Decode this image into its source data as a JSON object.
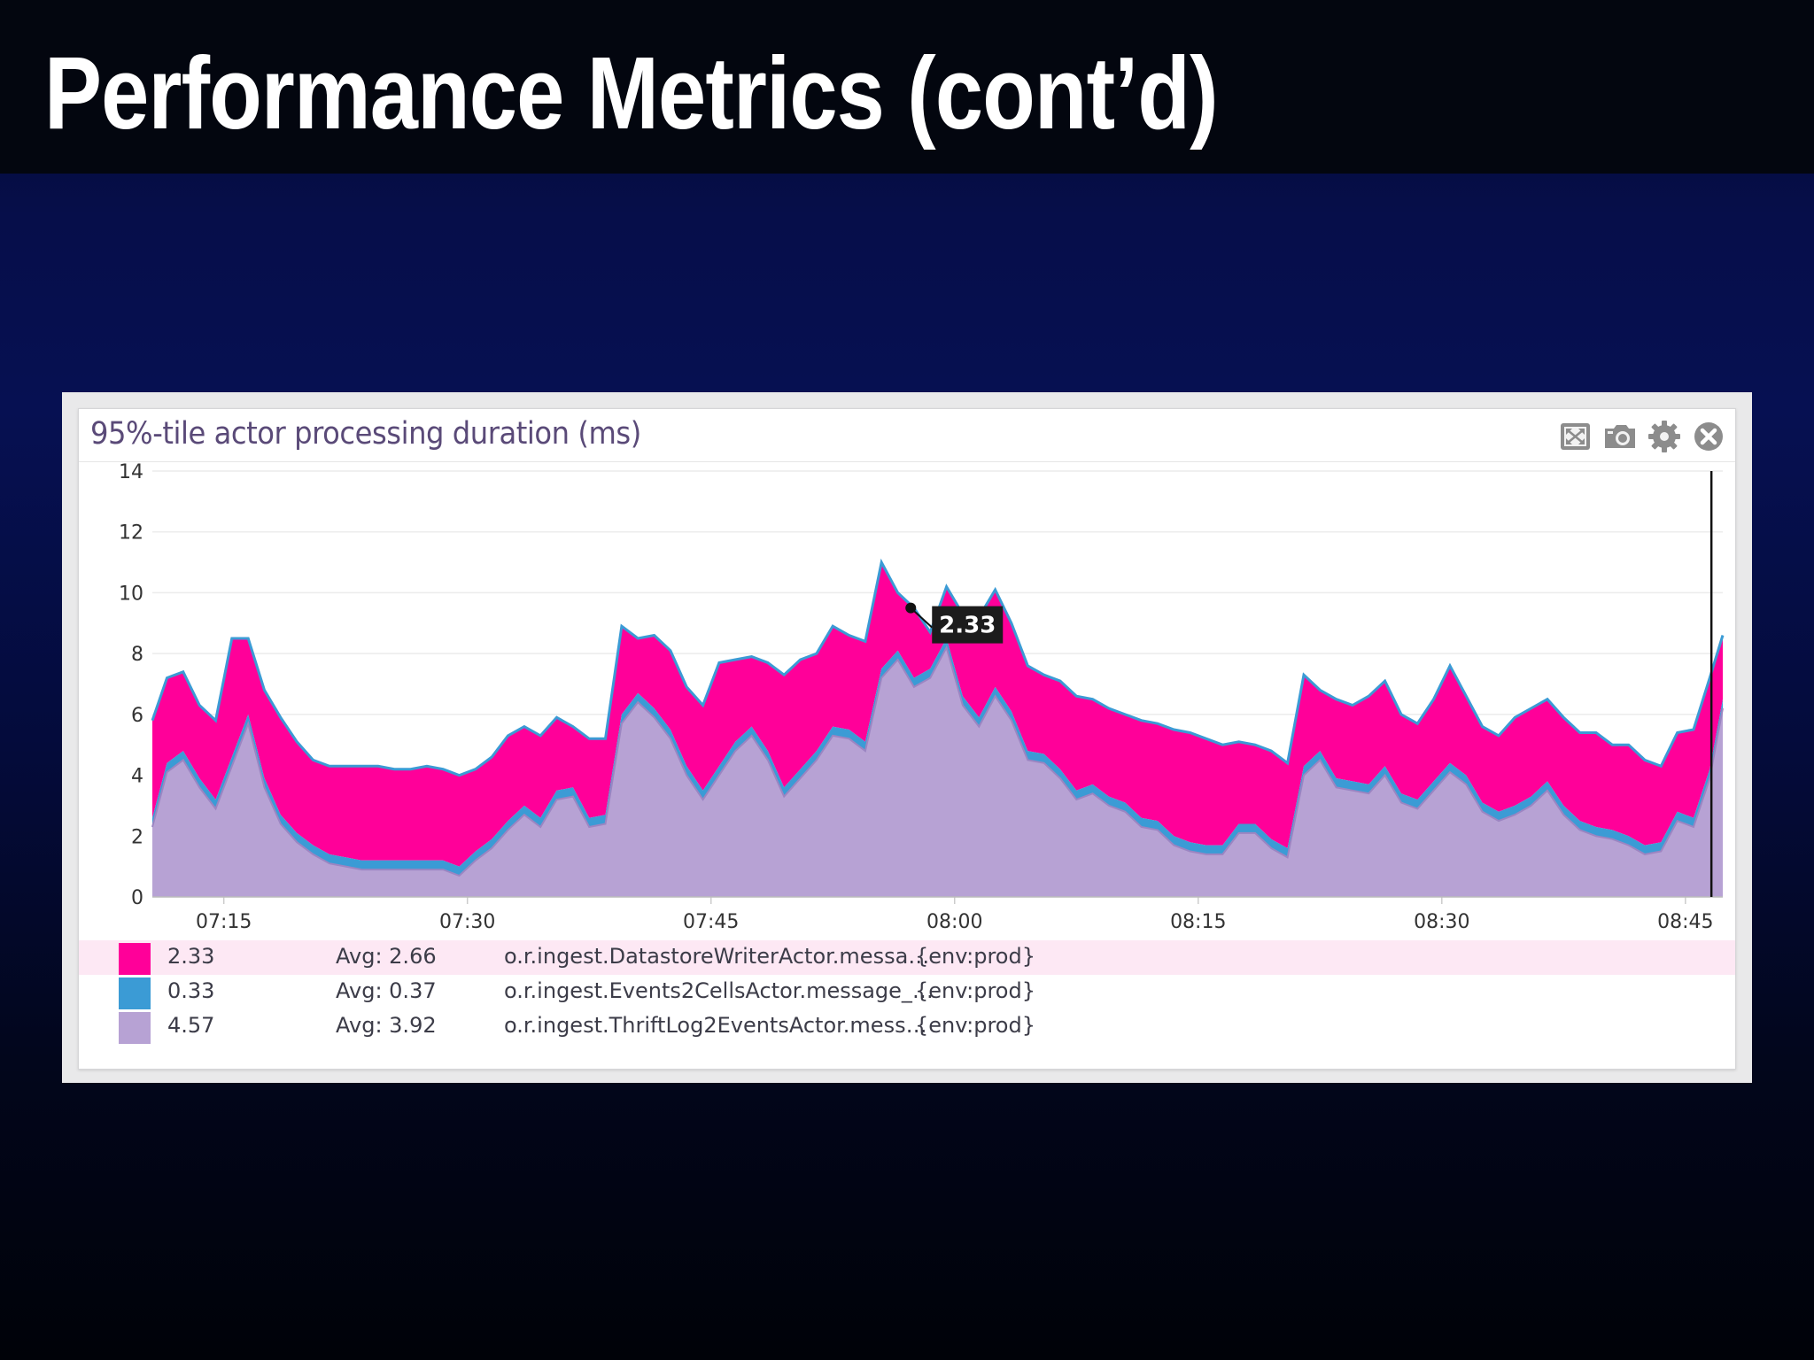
{
  "slide": {
    "title": "Performance Metrics (cont’d)"
  },
  "widget": {
    "title": "95%-tile actor processing duration (ms)",
    "tools": [
      {
        "name": "fullscreen-icon"
      },
      {
        "name": "camera-icon"
      },
      {
        "name": "gear-icon"
      },
      {
        "name": "close-icon"
      }
    ]
  },
  "colors": {
    "datastore": "#ff0099",
    "events2cells": "#3b9bd5",
    "thrift": "#b7a2d4",
    "thrift_edge": "#9b85c2"
  },
  "chart_data": {
    "type": "area",
    "stacked": true,
    "x_unit": "time",
    "ylim": [
      0,
      14
    ],
    "y_ticks": [
      0,
      2,
      4,
      6,
      8,
      10,
      12,
      14
    ],
    "x_ticks": [
      "07:15",
      "07:30",
      "07:45",
      "08:00",
      "08:15",
      "08:30",
      "08:45"
    ],
    "x_tick_minutes": [
      435,
      450,
      465,
      480,
      495,
      510,
      525
    ],
    "xlim_minutes": [
      430.6,
      527.3
    ],
    "grid": true,
    "cursor_minute": 526.6,
    "tooltip": {
      "minute": 477.3,
      "value": "2.33"
    },
    "x": [
      430.6,
      431.5,
      432.5,
      433.5,
      434.5,
      435.5,
      436.5,
      437.5,
      438.5,
      439.5,
      440.5,
      441.5,
      442.5,
      443.5,
      444.5,
      445.5,
      446.5,
      447.5,
      448.5,
      449.5,
      450.5,
      451.5,
      452.5,
      453.5,
      454.5,
      455.5,
      456.5,
      457.5,
      458.5,
      459.5,
      460.5,
      461.5,
      462.5,
      463.5,
      464.5,
      465.5,
      466.5,
      467.5,
      468.5,
      469.5,
      470.5,
      471.5,
      472.5,
      473.5,
      474.5,
      475.5,
      476.5,
      477.5,
      478.5,
      479.5,
      480.5,
      481.5,
      482.5,
      483.5,
      484.5,
      485.5,
      486.5,
      487.5,
      488.5,
      489.5,
      490.5,
      491.5,
      492.5,
      493.5,
      494.5,
      495.5,
      496.5,
      497.5,
      498.5,
      499.5,
      500.5,
      501.5,
      502.5,
      503.5,
      504.5,
      505.5,
      506.5,
      507.5,
      508.5,
      509.5,
      510.5,
      511.5,
      512.5,
      513.5,
      514.5,
      515.5,
      516.5,
      517.5,
      518.5,
      519.5,
      520.5,
      521.5,
      522.5,
      523.5,
      524.5,
      525.5,
      526.5,
      527.3
    ],
    "series": [
      {
        "name": "o.r.ingest.ThriftLog2EventsActor.mess…",
        "values": [
          2.3,
          4.1,
          4.5,
          3.6,
          2.9,
          4.3,
          5.7,
          3.6,
          2.4,
          1.8,
          1.4,
          1.1,
          1.0,
          0.9,
          0.9,
          0.9,
          0.9,
          0.9,
          0.9,
          0.7,
          1.2,
          1.6,
          2.2,
          2.7,
          2.3,
          3.2,
          3.3,
          2.3,
          2.4,
          5.7,
          6.4,
          5.9,
          5.2,
          4.0,
          3.2,
          4.0,
          4.8,
          5.3,
          4.5,
          3.3,
          3.9,
          4.5,
          5.3,
          5.2,
          4.8,
          7.2,
          7.8,
          6.9,
          7.2,
          8.2,
          6.3,
          5.6,
          6.6,
          5.8,
          4.5,
          4.4,
          3.9,
          3.2,
          3.4,
          3.0,
          2.8,
          2.3,
          2.2,
          1.7,
          1.5,
          1.4,
          1.4,
          2.1,
          2.1,
          1.6,
          1.3,
          4.0,
          4.5,
          3.6,
          3.5,
          3.4,
          4.0,
          3.1,
          2.9,
          3.5,
          4.1,
          3.7,
          2.8,
          2.5,
          2.7,
          3.0,
          3.5,
          2.7,
          2.2,
          2.0,
          1.9,
          1.7,
          1.4,
          1.5,
          2.5,
          2.3,
          3.9,
          6.2
        ]
      },
      {
        "name": "o.r.ingest.Events2CellsActor.message_…",
        "values": [
          0.3,
          0.3,
          0.3,
          0.3,
          0.3,
          0.3,
          0.3,
          0.3,
          0.3,
          0.3,
          0.3,
          0.3,
          0.3,
          0.3,
          0.3,
          0.3,
          0.3,
          0.3,
          0.3,
          0.3,
          0.3,
          0.3,
          0.3,
          0.3,
          0.3,
          0.3,
          0.3,
          0.3,
          0.3,
          0.3,
          0.3,
          0.3,
          0.3,
          0.3,
          0.3,
          0.3,
          0.3,
          0.3,
          0.3,
          0.3,
          0.3,
          0.3,
          0.3,
          0.3,
          0.3,
          0.3,
          0.3,
          0.3,
          0.3,
          0.3,
          0.3,
          0.3,
          0.3,
          0.3,
          0.3,
          0.3,
          0.3,
          0.3,
          0.3,
          0.3,
          0.3,
          0.3,
          0.3,
          0.3,
          0.3,
          0.3,
          0.3,
          0.3,
          0.3,
          0.3,
          0.3,
          0.3,
          0.3,
          0.3,
          0.3,
          0.3,
          0.3,
          0.3,
          0.3,
          0.3,
          0.3,
          0.3,
          0.3,
          0.3,
          0.3,
          0.3,
          0.3,
          0.3,
          0.3,
          0.3,
          0.3,
          0.3,
          0.3,
          0.3,
          0.3,
          0.3,
          0.3,
          0.3
        ]
      },
      {
        "name": "o.r.ingest.DatastoreWriterActor.messa…",
        "values": [
          3.2,
          2.8,
          2.6,
          2.4,
          2.6,
          3.9,
          2.5,
          2.9,
          3.2,
          3.0,
          2.8,
          2.9,
          3.0,
          3.1,
          3.1,
          3.0,
          3.0,
          3.1,
          3.0,
          3.0,
          2.7,
          2.7,
          2.8,
          2.6,
          2.7,
          2.4,
          2.0,
          2.6,
          2.5,
          2.9,
          1.8,
          2.4,
          2.6,
          2.6,
          2.8,
          3.4,
          2.7,
          2.3,
          2.9,
          3.7,
          3.6,
          3.2,
          3.3,
          3.1,
          3.3,
          3.5,
          1.9,
          2.3,
          1.2,
          1.7,
          2.7,
          3.3,
          3.2,
          2.9,
          2.8,
          2.6,
          2.9,
          3.1,
          2.8,
          2.9,
          2.9,
          3.2,
          3.2,
          3.5,
          3.6,
          3.5,
          3.3,
          2.7,
          2.6,
          2.9,
          2.8,
          3.0,
          2.0,
          2.6,
          2.5,
          2.9,
          2.8,
          2.6,
          2.5,
          2.7,
          3.2,
          2.6,
          2.5,
          2.5,
          2.9,
          2.9,
          2.7,
          2.9,
          2.9,
          3.1,
          2.8,
          3.0,
          2.8,
          2.5,
          2.6,
          2.9,
          3.0,
          2.1
        ]
      }
    ]
  },
  "legend": [
    {
      "value": "2.33",
      "avg": "Avg: 2.66",
      "name": "o.r.ingest.DatastoreWriterActor.messa…",
      "tag": "{env:prod}",
      "color": "#ff0099"
    },
    {
      "value": "0.33",
      "avg": "Avg: 0.37",
      "name": "o.r.ingest.Events2CellsActor.message_…",
      "tag": "{env:prod}",
      "color": "#3b9bd5"
    },
    {
      "value": "4.57",
      "avg": "Avg: 3.92",
      "name": "o.r.ingest.ThriftLog2EventsActor.mess…",
      "tag": "{env:prod}",
      "color": "#b7a2d4"
    }
  ]
}
